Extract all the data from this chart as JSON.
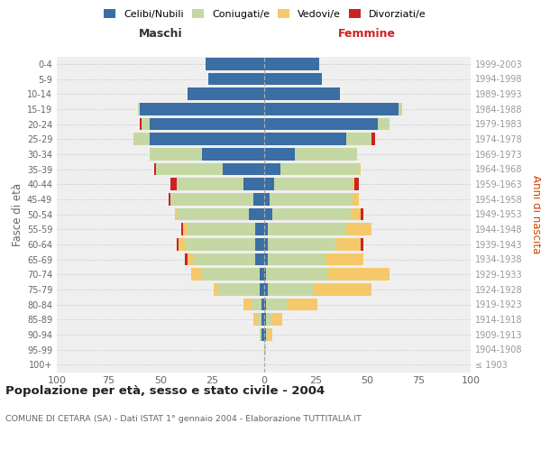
{
  "age_groups": [
    "100+",
    "95-99",
    "90-94",
    "85-89",
    "80-84",
    "75-79",
    "70-74",
    "65-69",
    "60-64",
    "55-59",
    "50-54",
    "45-49",
    "40-44",
    "35-39",
    "30-34",
    "25-29",
    "20-24",
    "15-19",
    "10-14",
    "5-9",
    "0-4"
  ],
  "birth_years": [
    "≤ 1903",
    "1904-1908",
    "1909-1913",
    "1914-1918",
    "1919-1923",
    "1924-1928",
    "1929-1933",
    "1934-1938",
    "1939-1943",
    "1944-1948",
    "1949-1953",
    "1954-1958",
    "1959-1963",
    "1964-1968",
    "1969-1973",
    "1974-1978",
    "1979-1983",
    "1984-1988",
    "1989-1993",
    "1994-1998",
    "1999-2003"
  ],
  "colors": {
    "celibi": "#3a6ea5",
    "coniugati": "#c5d8a4",
    "vedovi": "#f5c96a",
    "divorziati": "#cc2222"
  },
  "maschi": {
    "celibi": [
      0,
      0,
      1,
      1,
      1,
      2,
      2,
      4,
      4,
      4,
      7,
      5,
      10,
      20,
      30,
      55,
      55,
      60,
      37,
      27,
      28
    ],
    "coniugati": [
      0,
      0,
      1,
      2,
      5,
      20,
      28,
      30,
      34,
      33,
      35,
      40,
      32,
      32,
      25,
      8,
      4,
      1,
      0,
      0,
      0
    ],
    "vedovi": [
      0,
      0,
      0,
      2,
      4,
      2,
      5,
      3,
      3,
      2,
      1,
      0,
      0,
      0,
      0,
      0,
      0,
      0,
      0,
      0,
      0
    ],
    "divorziati": [
      0,
      0,
      0,
      0,
      0,
      0,
      0,
      1,
      1,
      1,
      0,
      1,
      3,
      1,
      0,
      0,
      1,
      0,
      0,
      0,
      0
    ]
  },
  "femmine": {
    "nubili": [
      0,
      0,
      1,
      1,
      1,
      2,
      1,
      2,
      2,
      2,
      4,
      3,
      5,
      8,
      15,
      40,
      55,
      65,
      37,
      28,
      27
    ],
    "coniugati": [
      0,
      1,
      1,
      3,
      10,
      22,
      30,
      28,
      33,
      38,
      38,
      40,
      38,
      38,
      30,
      12,
      6,
      2,
      0,
      0,
      0
    ],
    "vedovi": [
      0,
      0,
      2,
      5,
      15,
      28,
      30,
      18,
      12,
      12,
      5,
      3,
      1,
      1,
      0,
      0,
      0,
      0,
      0,
      0,
      0
    ],
    "divorziati": [
      0,
      0,
      0,
      0,
      0,
      0,
      0,
      0,
      1,
      0,
      1,
      0,
      2,
      0,
      0,
      2,
      0,
      0,
      0,
      0,
      0
    ]
  },
  "xlim": 100,
  "title": "Popolazione per età, sesso e stato civile - 2004",
  "subtitle": "COMUNE DI CETARA (SA) - Dati ISTAT 1° gennaio 2004 - Elaborazione TUTTITALIA.IT",
  "ylabel_left": "Fasce di età",
  "ylabel_right": "Anni di nascita",
  "header_left": "Maschi",
  "header_right": "Femmine",
  "legend_labels": [
    "Celibi/Nubili",
    "Coniugati/e",
    "Vedovi/e",
    "Divorziati/e"
  ],
  "background_color": "#ffffff",
  "plot_bg_color": "#efefef",
  "grid_color": "#cccccc"
}
